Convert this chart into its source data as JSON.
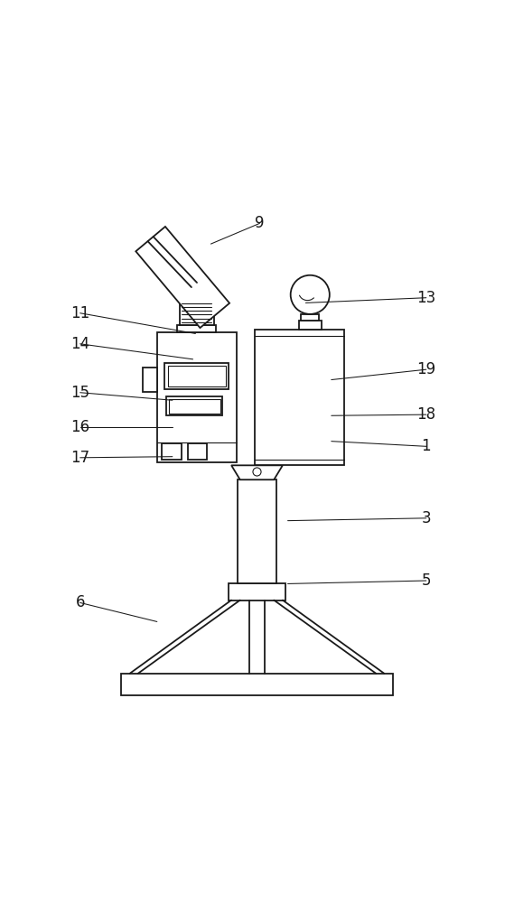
{
  "bg_color": "#ffffff",
  "line_color": "#1a1a1a",
  "lw": 1.3,
  "lw_thin": 0.8,
  "fig_w": 5.69,
  "fig_h": 10.0,
  "annotations": {
    "9": {
      "lpos": [
        0.505,
        0.945
      ],
      "tpos": [
        0.41,
        0.905
      ]
    },
    "13": {
      "lpos": [
        0.83,
        0.8
      ],
      "tpos": [
        0.595,
        0.79
      ]
    },
    "11": {
      "lpos": [
        0.155,
        0.77
      ],
      "tpos": [
        0.38,
        0.73
      ]
    },
    "14": {
      "lpos": [
        0.155,
        0.71
      ],
      "tpos": [
        0.375,
        0.68
      ]
    },
    "19": {
      "lpos": [
        0.83,
        0.66
      ],
      "tpos": [
        0.645,
        0.64
      ]
    },
    "15": {
      "lpos": [
        0.155,
        0.615
      ],
      "tpos": [
        0.335,
        0.6
      ]
    },
    "18": {
      "lpos": [
        0.83,
        0.572
      ],
      "tpos": [
        0.645,
        0.57
      ]
    },
    "16": {
      "lpos": [
        0.155,
        0.548
      ],
      "tpos": [
        0.335,
        0.548
      ]
    },
    "1": {
      "lpos": [
        0.83,
        0.51
      ],
      "tpos": [
        0.645,
        0.52
      ]
    },
    "17": {
      "lpos": [
        0.155,
        0.488
      ],
      "tpos": [
        0.335,
        0.49
      ]
    },
    "3": {
      "lpos": [
        0.83,
        0.37
      ],
      "tpos": [
        0.56,
        0.365
      ]
    },
    "5": {
      "lpos": [
        0.83,
        0.248
      ],
      "tpos": [
        0.56,
        0.242
      ]
    },
    "6": {
      "lpos": [
        0.155,
        0.205
      ],
      "tpos": [
        0.305,
        0.168
      ]
    }
  }
}
